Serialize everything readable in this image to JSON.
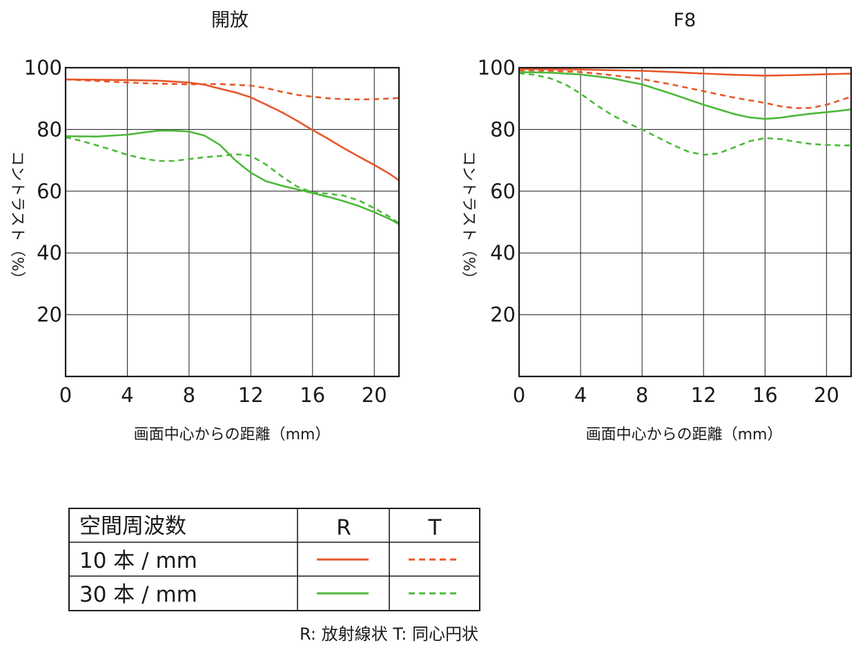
{
  "colors": {
    "r10": "#e8562a",
    "r30": "#4cb83a",
    "grid": "#1a1a1a",
    "text": "#1a1a1a"
  },
  "chart_data": [
    {
      "type": "line",
      "title": "開放",
      "xlabel": "画面中心からの距離（mm）",
      "ylabel": "コントラスト（%）",
      "xlim": [
        0,
        21.6
      ],
      "ylim": [
        0,
        100
      ],
      "x_ticks": [
        0,
        4,
        8,
        12,
        16,
        20
      ],
      "y_ticks": [
        20,
        40,
        60,
        80,
        100
      ],
      "grid": true,
      "series": [
        {
          "key": "r10",
          "dash": false,
          "points": [
            [
              0,
              96.2
            ],
            [
              2,
              96.1
            ],
            [
              4,
              96
            ],
            [
              6,
              95.8
            ],
            [
              8,
              95.2
            ],
            [
              9,
              94.5
            ],
            [
              10,
              93.2
            ],
            [
              11,
              92
            ],
            [
              12,
              90.4
            ],
            [
              13,
              88
            ],
            [
              14,
              85.6
            ],
            [
              15,
              82.8
            ],
            [
              16,
              79.8
            ],
            [
              17,
              77
            ],
            [
              18,
              74
            ],
            [
              19,
              71.2
            ],
            [
              20,
              68.5
            ],
            [
              21,
              65.6
            ],
            [
              21.6,
              63.5
            ]
          ]
        },
        {
          "key": "r10",
          "dash": true,
          "points": [
            [
              0,
              96.2
            ],
            [
              2,
              95.7
            ],
            [
              4,
              95.2
            ],
            [
              6,
              94.8
            ],
            [
              8,
              94.6
            ],
            [
              10,
              94.7
            ],
            [
              12,
              94.2
            ],
            [
              13,
              93.4
            ],
            [
              14,
              92.2
            ],
            [
              15,
              91.2
            ],
            [
              16,
              90.6
            ],
            [
              17,
              90.1
            ],
            [
              18,
              89.8
            ],
            [
              19,
              89.7
            ],
            [
              20,
              89.8
            ],
            [
              21,
              90
            ],
            [
              21.6,
              90.2
            ]
          ]
        },
        {
          "key": "r30",
          "dash": false,
          "points": [
            [
              0,
              77.8
            ],
            [
              2,
              77.7
            ],
            [
              4,
              78.3
            ],
            [
              5,
              79
            ],
            [
              6,
              79.6
            ],
            [
              7,
              79.6
            ],
            [
              8,
              79.3
            ],
            [
              9,
              78
            ],
            [
              10,
              75
            ],
            [
              11,
              70
            ],
            [
              12,
              66
            ],
            [
              13,
              63.2
            ],
            [
              14,
              61.8
            ],
            [
              15,
              60.6
            ],
            [
              16,
              59.4
            ],
            [
              17,
              58.2
            ],
            [
              18,
              56.8
            ],
            [
              19,
              55.2
            ],
            [
              20,
              53.2
            ],
            [
              21,
              51
            ],
            [
              21.6,
              49.3
            ]
          ]
        },
        {
          "key": "r30",
          "dash": true,
          "points": [
            [
              0,
              77.5
            ],
            [
              1,
              76.3
            ],
            [
              2,
              74.9
            ],
            [
              3,
              73.4
            ],
            [
              4,
              71.8
            ],
            [
              5,
              70.6
            ],
            [
              6,
              69.8
            ],
            [
              7,
              69.8
            ],
            [
              8,
              70.4
            ],
            [
              9,
              71
            ],
            [
              10,
              71.4
            ],
            [
              11,
              72
            ],
            [
              12,
              71.5
            ],
            [
              13,
              68.6
            ],
            [
              14,
              64.8
            ],
            [
              15,
              61.5
            ],
            [
              16,
              59.6
            ],
            [
              17,
              59.2
            ],
            [
              18,
              58.6
            ],
            [
              19,
              57
            ],
            [
              20,
              54.5
            ],
            [
              21,
              51.7
            ],
            [
              21.6,
              49.6
            ]
          ]
        }
      ]
    },
    {
      "type": "line",
      "title": "F8",
      "xlabel": "画面中心からの距離（mm）",
      "ylabel": "コントラスト（%）",
      "xlim": [
        0,
        21.6
      ],
      "ylim": [
        0,
        100
      ],
      "x_ticks": [
        0,
        4,
        8,
        12,
        16,
        20
      ],
      "y_ticks": [
        20,
        40,
        60,
        80,
        100
      ],
      "grid": true,
      "series": [
        {
          "key": "r10",
          "dash": false,
          "points": [
            [
              0,
              99.6
            ],
            [
              4,
              99.4
            ],
            [
              8,
              99
            ],
            [
              10,
              98.6
            ],
            [
              12,
              98.1
            ],
            [
              14,
              97.7
            ],
            [
              16,
              97.4
            ],
            [
              18,
              97.6
            ],
            [
              20,
              97.9
            ],
            [
              21.6,
              98.1
            ]
          ]
        },
        {
          "key": "r10",
          "dash": true,
          "points": [
            [
              0,
              99.2
            ],
            [
              2,
              99
            ],
            [
              4,
              98.6
            ],
            [
              6,
              97.6
            ],
            [
              8,
              96.3
            ],
            [
              10,
              94.5
            ],
            [
              12,
              92.4
            ],
            [
              14,
              90.3
            ],
            [
              16,
              88.6
            ],
            [
              17,
              87.5
            ],
            [
              18,
              86.9
            ],
            [
              19,
              87
            ],
            [
              20,
              88
            ],
            [
              21,
              89.6
            ],
            [
              21.6,
              90.6
            ]
          ]
        },
        {
          "key": "r30",
          "dash": false,
          "points": [
            [
              0,
              98.6
            ],
            [
              2,
              98.4
            ],
            [
              4,
              97.8
            ],
            [
              6,
              96.6
            ],
            [
              8,
              94.6
            ],
            [
              10,
              91.4
            ],
            [
              12,
              88
            ],
            [
              14,
              85
            ],
            [
              15,
              83.9
            ],
            [
              16,
              83.4
            ],
            [
              17,
              83.8
            ],
            [
              18,
              84.5
            ],
            [
              19,
              85.1
            ],
            [
              20,
              85.6
            ],
            [
              21,
              86.1
            ],
            [
              21.6,
              86.5
            ]
          ]
        },
        {
          "key": "r30",
          "dash": true,
          "points": [
            [
              0,
              98.2
            ],
            [
              1,
              97.7
            ],
            [
              2,
              96.6
            ],
            [
              3,
              94.6
            ],
            [
              4,
              91.6
            ],
            [
              5,
              88
            ],
            [
              6,
              84.8
            ],
            [
              7,
              82.2
            ],
            [
              8,
              80
            ],
            [
              9,
              77.5
            ],
            [
              10,
              75
            ],
            [
              11,
              72.8
            ],
            [
              12,
              71.8
            ],
            [
              13,
              72.3
            ],
            [
              14,
              74.2
            ],
            [
              15,
              76.2
            ],
            [
              16,
              77.2
            ],
            [
              17,
              76.9
            ],
            [
              18,
              76
            ],
            [
              19,
              75.3
            ],
            [
              20,
              75
            ],
            [
              21,
              74.8
            ],
            [
              21.6,
              74.8
            ]
          ]
        }
      ]
    }
  ],
  "legend": {
    "header": "空間周波数",
    "col_r": "R",
    "col_t": "T",
    "rows": [
      {
        "label": "10 本 / mm",
        "key": "r10"
      },
      {
        "label": "30 本 / mm",
        "key": "r30"
      }
    ]
  },
  "note": "R: 放射線状  T: 同心円状"
}
